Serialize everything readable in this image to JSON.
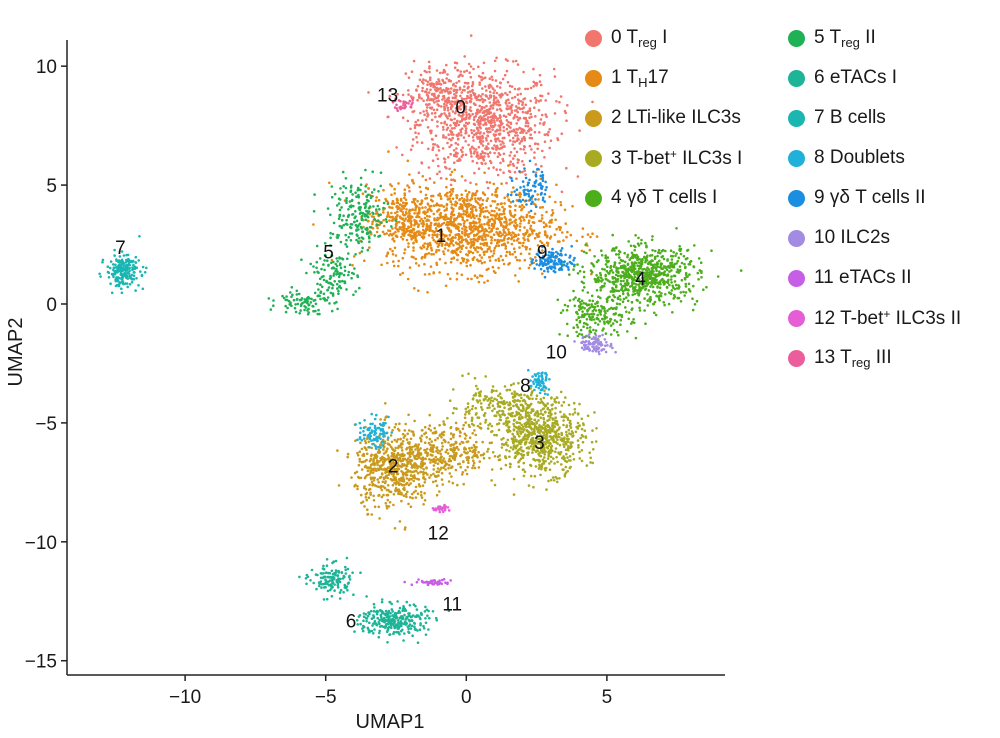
{
  "chart_data": {
    "type": "scatter",
    "title": "",
    "xlabel": "UMAP1",
    "ylabel": "UMAP2",
    "xlim": [
      -14.2,
      9.2
    ],
    "ylim": [
      -15.6,
      11.1
    ],
    "xticks": [
      -10,
      -5,
      0,
      5
    ],
    "yticks": [
      10,
      5,
      0,
      -5,
      -10,
      -15
    ],
    "xtick_labels": [
      "−10",
      "−5",
      "0",
      "5"
    ],
    "ytick_labels": [
      "10",
      "5",
      "0",
      "−5",
      "−10",
      "−15"
    ],
    "grid": false,
    "legend_position": "top-right, two columns",
    "series": [
      {
        "name": "0 Treg I",
        "label_pre": "0 T",
        "label_sub": "reg",
        "label_post": " I",
        "cluster_label": "0",
        "color": "#F0766E",
        "label_xy": [
          -0.2,
          8.3
        ],
        "blobs": [
          {
            "cx": 0.7,
            "cy": 7.6,
            "sx": 1.6,
            "sy": 1.5,
            "n": 850
          },
          {
            "cx": -0.9,
            "cy": 8.7,
            "sx": 0.8,
            "sy": 0.9,
            "n": 200
          }
        ]
      },
      {
        "name": "1 TH17",
        "label_pre": "1 T",
        "label_sub": "H",
        "label_post": "17",
        "cluster_label": "1",
        "color": "#E58A14",
        "label_xy": [
          -0.9,
          2.9
        ],
        "blobs": [
          {
            "cx": 0.2,
            "cy": 3.2,
            "sx": 2.0,
            "sy": 1.2,
            "n": 1100
          },
          {
            "cx": -2.3,
            "cy": 3.6,
            "sx": 0.8,
            "sy": 0.9,
            "n": 250
          }
        ]
      },
      {
        "name": "2 LTi-like ILC3s",
        "label_pre": "2 LTi-like ILC3s",
        "label_sub": "",
        "label_post": "",
        "cluster_label": "2",
        "color": "#C99A1C",
        "label_xy": [
          -2.6,
          -6.8
        ],
        "blobs": [
          {
            "cx": -2.6,
            "cy": -6.9,
            "sx": 0.9,
            "sy": 1.1,
            "n": 550
          },
          {
            "cx": -0.8,
            "cy": -6.2,
            "sx": 1.3,
            "sy": 0.8,
            "n": 350
          }
        ]
      },
      {
        "name": "3 T-bet+ ILC3s I",
        "label_pre": "3 T-bet",
        "label_sup": "+",
        "label_sub": "",
        "label_post": " ILC3s I",
        "cluster_label": "3",
        "color": "#A8AB22",
        "label_xy": [
          2.6,
          -5.8
        ],
        "blobs": [
          {
            "cx": 2.7,
            "cy": -5.6,
            "sx": 1.0,
            "sy": 1.0,
            "n": 650
          },
          {
            "cx": 1.2,
            "cy": -4.3,
            "sx": 1.2,
            "sy": 0.6,
            "n": 220
          }
        ]
      },
      {
        "name": "4 γδ T cells I",
        "label_pre": "4 γδ T cells I",
        "label_sub": "",
        "label_post": "",
        "cluster_label": "4",
        "color": "#4DAE1C",
        "label_xy": [
          6.2,
          1.1
        ],
        "blobs": [
          {
            "cx": 6.3,
            "cy": 1.2,
            "sx": 1.3,
            "sy": 0.8,
            "n": 700
          },
          {
            "cx": 4.6,
            "cy": -0.5,
            "sx": 0.8,
            "sy": 0.6,
            "n": 180
          }
        ]
      },
      {
        "name": "5 Treg II",
        "label_pre": "5 T",
        "label_sub": "reg",
        "label_post": " II",
        "cluster_label": "5",
        "color": "#1FB156",
        "label_xy": [
          -4.9,
          2.2
        ],
        "blobs": [
          {
            "cx": -3.8,
            "cy": 3.7,
            "sx": 0.7,
            "sy": 1.0,
            "n": 200
          },
          {
            "cx": -4.8,
            "cy": 1.2,
            "sx": 0.6,
            "sy": 0.7,
            "n": 120
          },
          {
            "cx": -5.8,
            "cy": 0.1,
            "sx": 0.6,
            "sy": 0.35,
            "n": 80
          }
        ]
      },
      {
        "name": "6 eTACs I",
        "label_pre": "6 eTACs I",
        "label_sub": "",
        "label_post": "",
        "cluster_label": "6",
        "color": "#1DB497",
        "label_xy": [
          -4.1,
          -13.3
        ],
        "blobs": [
          {
            "cx": -2.6,
            "cy": -13.3,
            "sx": 0.8,
            "sy": 0.45,
            "n": 280
          },
          {
            "cx": -4.8,
            "cy": -11.6,
            "sx": 0.5,
            "sy": 0.45,
            "n": 130
          }
        ]
      },
      {
        "name": "7 B cells",
        "label_pre": "7 B cells",
        "label_sub": "",
        "label_post": "",
        "cluster_label": "7",
        "color": "#19B6B2",
        "label_xy": [
          -12.3,
          2.4
        ],
        "blobs": [
          {
            "cx": -12.2,
            "cy": 1.4,
            "sx": 0.4,
            "sy": 0.45,
            "n": 200
          }
        ]
      },
      {
        "name": "8 Doublets",
        "label_pre": "8 Doublets",
        "label_sub": "",
        "label_post": "",
        "cluster_label": "8",
        "color": "#1FB1DA",
        "label_xy": [
          2.1,
          -3.4
        ],
        "blobs": [
          {
            "cx": 2.6,
            "cy": -3.3,
            "sx": 0.25,
            "sy": 0.3,
            "n": 60
          },
          {
            "cx": -3.3,
            "cy": -5.4,
            "sx": 0.35,
            "sy": 0.4,
            "n": 80
          }
        ]
      },
      {
        "name": "9 γδ T cells II",
        "label_pre": "9 γδ T cells II",
        "label_sub": "",
        "label_post": "",
        "cluster_label": "9",
        "color": "#1A8EE0",
        "label_xy": [
          2.7,
          2.2
        ],
        "blobs": [
          {
            "cx": 3.1,
            "cy": 1.8,
            "sx": 0.45,
            "sy": 0.35,
            "n": 120
          },
          {
            "cx": 2.3,
            "cy": 4.9,
            "sx": 0.4,
            "sy": 0.6,
            "n": 80
          }
        ]
      },
      {
        "name": "10 ILC2s",
        "label_pre": "10 ILC2s",
        "label_sub": "",
        "label_post": "",
        "cluster_label": "10",
        "color": "#A28BE2",
        "label_xy": [
          3.2,
          -2.0
        ],
        "blobs": [
          {
            "cx": 4.6,
            "cy": -1.7,
            "sx": 0.4,
            "sy": 0.25,
            "n": 90
          }
        ]
      },
      {
        "name": "11 eTACs II",
        "label_pre": "11 eTACs II",
        "label_sub": "",
        "label_post": "",
        "cluster_label": "11",
        "color": "#C75FE6",
        "label_xy": [
          -0.5,
          -12.6
        ],
        "blobs": [
          {
            "cx": -1.2,
            "cy": -11.7,
            "sx": 0.45,
            "sy": 0.08,
            "n": 45
          }
        ]
      },
      {
        "name": "12 T-bet+ ILC3s II",
        "label_pre": "12 T-bet",
        "label_sup": "+",
        "label_sub": "",
        "label_post": " ILC3s II",
        "cluster_label": "12",
        "color": "#E55ED6",
        "label_xy": [
          -1.0,
          -9.6
        ],
        "blobs": [
          {
            "cx": -0.9,
            "cy": -8.6,
            "sx": 0.2,
            "sy": 0.08,
            "n": 30
          }
        ]
      },
      {
        "name": "13 Treg III",
        "label_pre": "13 T",
        "label_sub": "reg",
        "label_post": " III",
        "cluster_label": "13",
        "color": "#EC5D9B",
        "label_xy": [
          -2.8,
          8.8
        ],
        "blobs": [
          {
            "cx": -2.2,
            "cy": 8.4,
            "sx": 0.25,
            "sy": 0.2,
            "n": 30
          }
        ]
      }
    ]
  }
}
